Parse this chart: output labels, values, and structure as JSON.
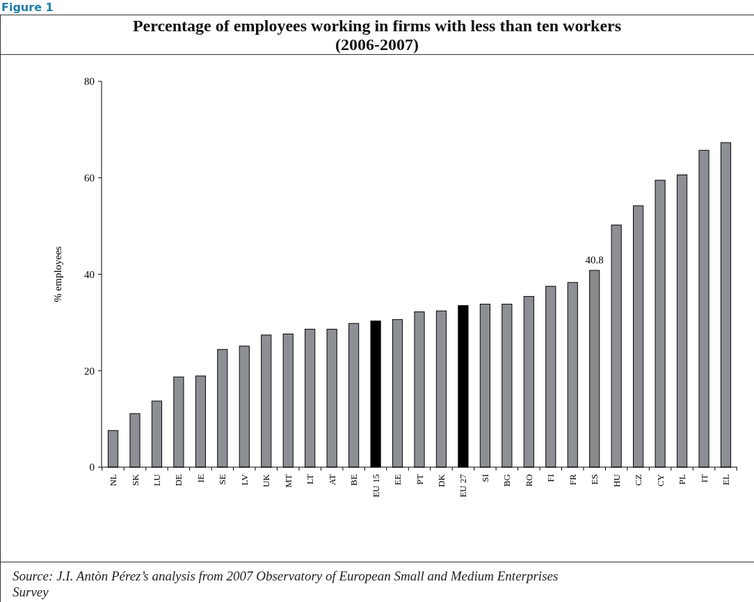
{
  "chart_data": {
    "type": "bar",
    "title": "Percentage of employees working in firms with less than ten workers (2006-2007)",
    "ylabel": "% employees",
    "categories": [
      "NL",
      "SK",
      "LU",
      "DE",
      "IE",
      "SE",
      "LV",
      "UK",
      "MT",
      "LT",
      "AT",
      "BE",
      "EU 15",
      "EE",
      "PT",
      "DK",
      "EU 27",
      "SI",
      "BG",
      "RO",
      "FI",
      "FR",
      "ES",
      "HU",
      "CZ",
      "CY",
      "PL",
      "IT",
      "EL"
    ],
    "values": [
      7.6,
      11.1,
      13.7,
      18.7,
      18.9,
      24.4,
      25.1,
      27.4,
      27.6,
      28.6,
      28.6,
      29.8,
      30.3,
      30.6,
      32.2,
      32.4,
      33.5,
      33.8,
      33.8,
      35.4,
      37.5,
      38.3,
      40.8,
      50.2,
      54.2,
      59.5,
      60.6,
      65.7,
      67.3
    ],
    "colors": [
      "#8e8f94",
      "#8e8f94",
      "#8e8f94",
      "#8e8f94",
      "#8e8f94",
      "#8e8f94",
      "#8e8f94",
      "#8e8f94",
      "#8e8f94",
      "#8e8f94",
      "#8e8f94",
      "#8e8f94",
      "#000000",
      "#8e8f94",
      "#8e8f94",
      "#8e8f94",
      "#000000",
      "#8e8f94",
      "#8e8f94",
      "#8e8f94",
      "#8e8f94",
      "#8e8f94",
      "#8a8a8a",
      "#8e8f94",
      "#8e8f94",
      "#8e8f94",
      "#8e8f94",
      "#8e8f94",
      "#8e8f94"
    ],
    "value_labels": [
      null,
      null,
      null,
      null,
      null,
      null,
      null,
      null,
      null,
      null,
      null,
      null,
      null,
      null,
      null,
      null,
      null,
      null,
      null,
      null,
      null,
      null,
      "40.8",
      null,
      null,
      null,
      null,
      null,
      null
    ],
    "ylim": [
      0,
      80
    ],
    "yticks": [
      0,
      20,
      40,
      60,
      80
    ],
    "grid": false,
    "annotations": [
      "Figure 1",
      "Source: J.I. Antòn Pérez’s analysis from 2007 Observatory of  European Small and Medium Enterprises Survey"
    ]
  }
}
